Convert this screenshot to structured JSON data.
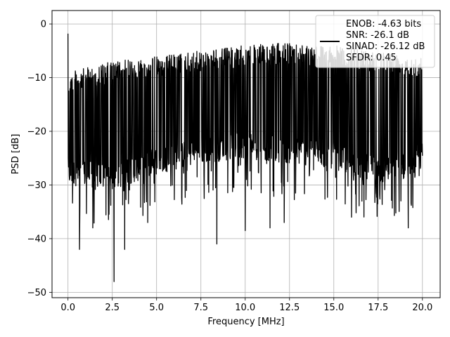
{
  "chart_data": {
    "type": "line",
    "title": "",
    "xlabel": "Frequency [MHz]",
    "ylabel": "PSD [dB]",
    "xlim": [
      -0.9,
      21.0
    ],
    "ylim": [
      -51,
      2.5
    ],
    "x_ticks": [
      0.0,
      2.5,
      5.0,
      7.5,
      10.0,
      12.5,
      15.0,
      17.5,
      20.0
    ],
    "x_tick_labels": [
      "0.0",
      "2.5",
      "5.0",
      "7.5",
      "10.0",
      "12.5",
      "15.0",
      "17.5",
      "20.0"
    ],
    "y_ticks": [
      0,
      -10,
      -20,
      -30,
      -40,
      -50
    ],
    "y_tick_labels": [
      "0",
      "−10",
      "−20",
      "−30",
      "−40",
      "−50"
    ],
    "grid": true,
    "legend_position": "top-right",
    "series": [
      {
        "name": "ENOB: -4.63 bits\nSNR: -26.1 dB\nSINAD: -26.12 dB\nSFDR: 0.45",
        "legend_lines": [
          "ENOB: -4.63 bits",
          "SNR: -26.1 dB",
          "SINAD: -26.12 dB",
          "SFDR: 0.45"
        ],
        "color": "#000000",
        "x_start": 0.0,
        "x_end": 20.0,
        "envelope": {
          "x": [
            0.0,
            2.5,
            5.0,
            7.5,
            10.0,
            12.5,
            15.0,
            17.5,
            20.0
          ],
          "upper": [
            -9,
            -7,
            -6,
            -5,
            -4,
            -3.5,
            -4,
            -5,
            -6
          ],
          "lower": [
            -30,
            -31,
            -28,
            -26,
            -25,
            -26,
            -27,
            -30,
            -27
          ]
        },
        "peaks": [
          {
            "x": 0.0,
            "y": -1.8
          },
          {
            "x": 2.6,
            "y": -48.0
          },
          {
            "x": 3.2,
            "y": -42.0
          },
          {
            "x": 0.65,
            "y": -42.0
          },
          {
            "x": 8.4,
            "y": -41.0
          },
          {
            "x": 1.4,
            "y": -38.0
          },
          {
            "x": 10.0,
            "y": -38.5
          },
          {
            "x": 11.4,
            "y": -38.0
          },
          {
            "x": 12.2,
            "y": -37.0
          },
          {
            "x": 16.0,
            "y": -36.0
          },
          {
            "x": 19.2,
            "y": -38.0
          },
          {
            "x": 4.5,
            "y": -37.0
          }
        ]
      }
    ]
  }
}
